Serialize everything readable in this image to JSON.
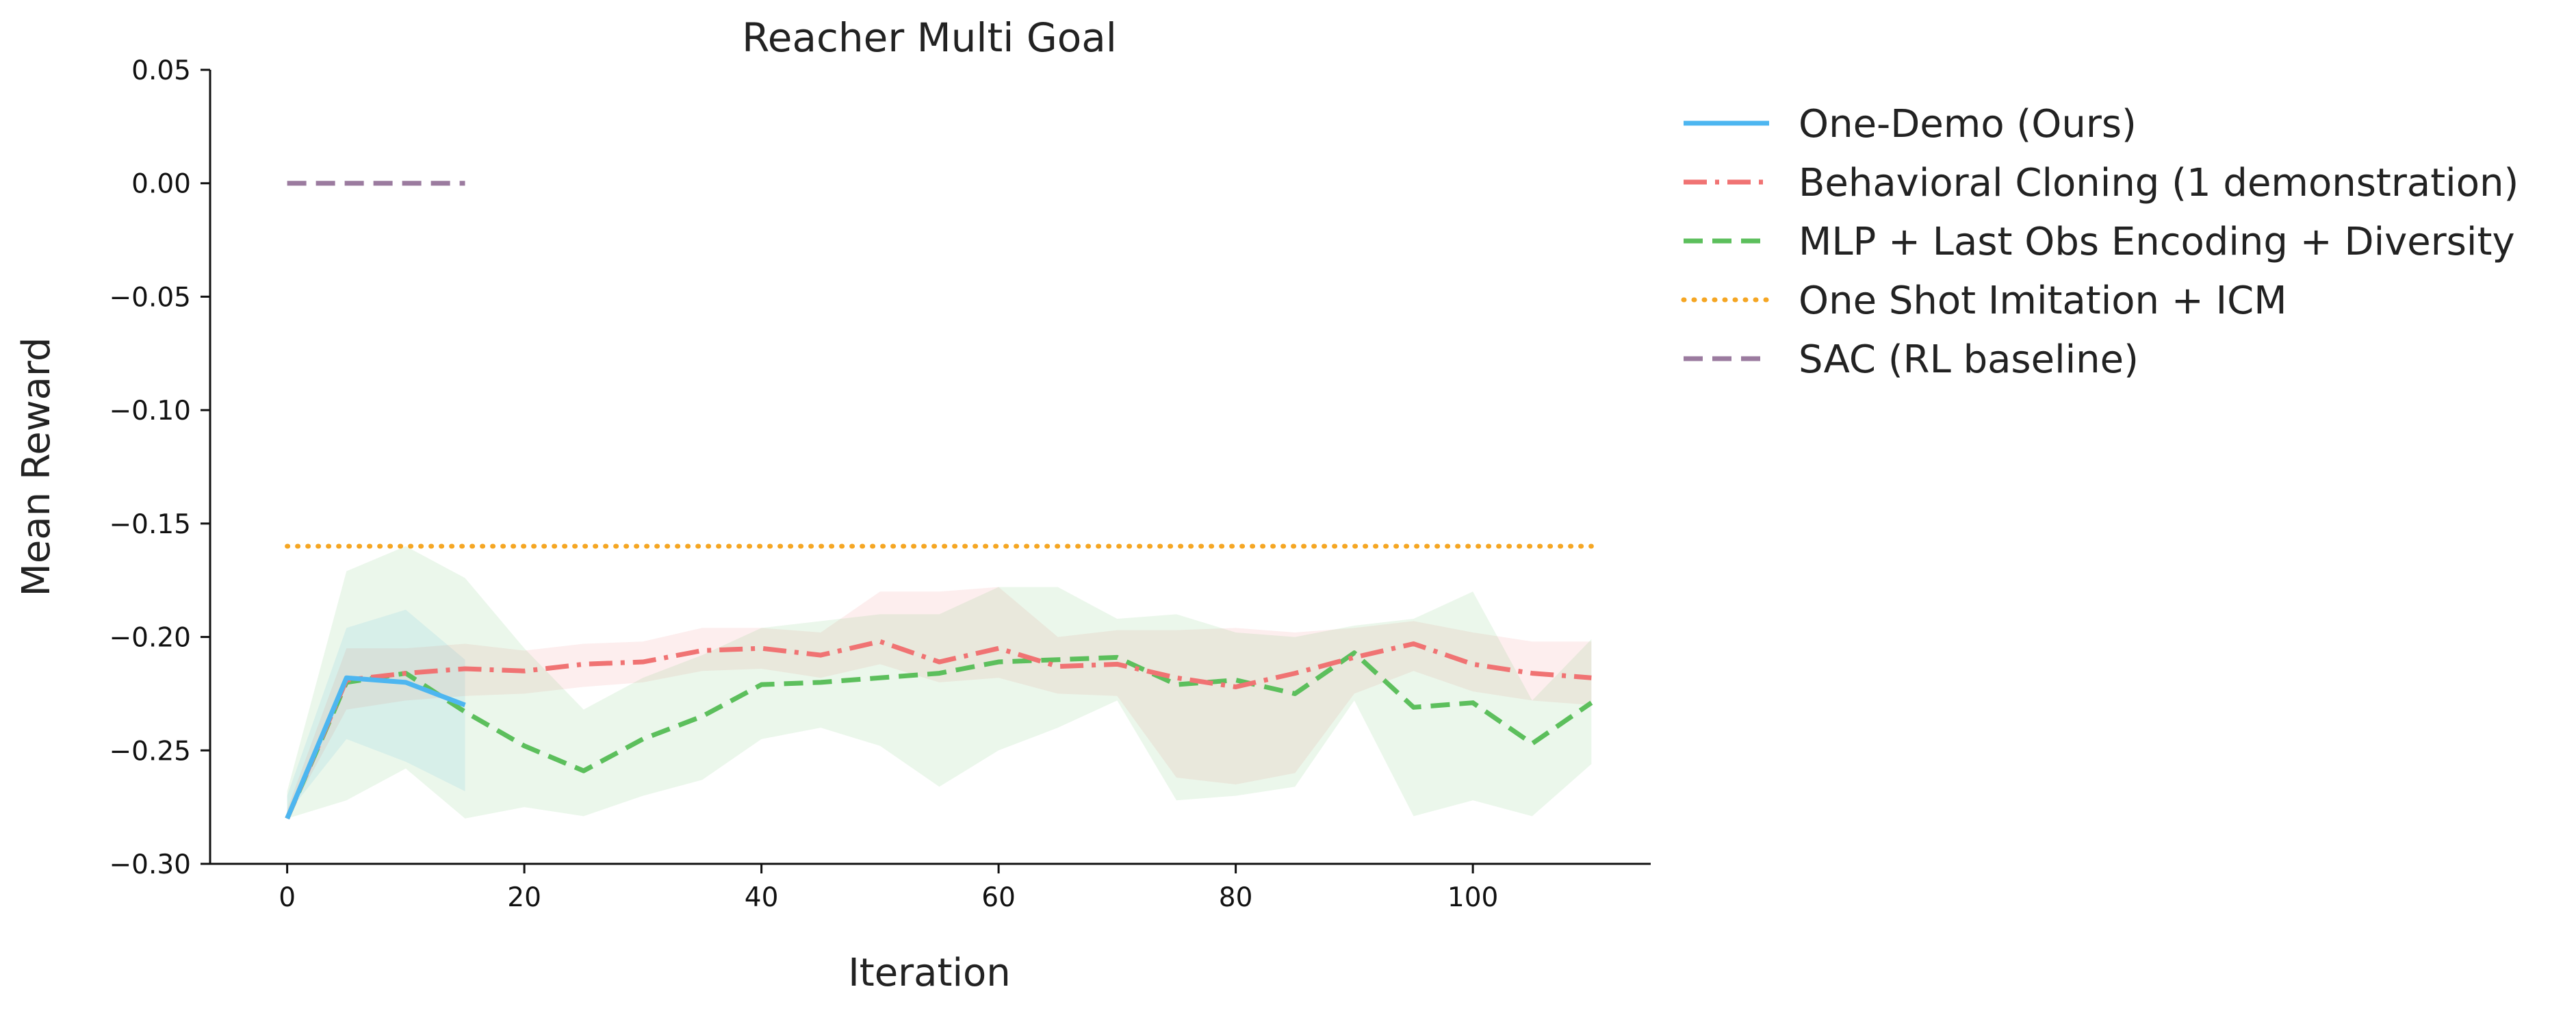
{
  "chart_data": {
    "type": "line",
    "title": "Reacher Multi Goal",
    "xlabel": "Iteration",
    "ylabel": "Mean Reward",
    "xlim": [
      -6.5,
      115
    ],
    "ylim": [
      -0.3,
      0.05
    ],
    "xticks": [
      0,
      20,
      40,
      60,
      80,
      100
    ],
    "xtick_labels": [
      "0",
      "20",
      "40",
      "60",
      "80",
      "100"
    ],
    "yticks": [
      0.05,
      0.0,
      -0.05,
      -0.1,
      -0.15,
      -0.2,
      -0.25,
      -0.3
    ],
    "ytick_labels": [
      "0.05",
      "0.00",
      "−0.05",
      "−0.10",
      "−0.15",
      "−0.20",
      "−0.25",
      "−0.30"
    ],
    "grid": false,
    "legend_position": "outside-top-right",
    "series": [
      {
        "name": "One-Demo (Ours)",
        "color": "#4db6f0",
        "dash": "solid",
        "x": [
          0,
          5,
          10,
          15
        ],
        "y": [
          -0.28,
          -0.218,
          -0.22,
          -0.23
        ],
        "lower": [
          -0.278,
          -0.245,
          -0.255,
          -0.268
        ],
        "upper": [
          -0.27,
          -0.196,
          -0.188,
          -0.21
        ]
      },
      {
        "name": "Behavioral Cloning (1 demonstration)",
        "color": "#f07373",
        "dash": "dashdot",
        "x": [
          0,
          5,
          10,
          15,
          20,
          25,
          30,
          35,
          40,
          45,
          50,
          55,
          60,
          65,
          70,
          75,
          80,
          85,
          90,
          95,
          100,
          105,
          110
        ],
        "y": [
          -0.28,
          -0.219,
          -0.216,
          -0.214,
          -0.215,
          -0.212,
          -0.211,
          -0.206,
          -0.205,
          -0.208,
          -0.202,
          -0.211,
          -0.205,
          -0.213,
          -0.212,
          -0.218,
          -0.222,
          -0.216,
          -0.209,
          -0.203,
          -0.212,
          -0.216,
          -0.218
        ],
        "lower": [
          -0.28,
          -0.232,
          -0.228,
          -0.226,
          -0.225,
          -0.222,
          -0.22,
          -0.215,
          -0.214,
          -0.218,
          -0.212,
          -0.22,
          -0.218,
          -0.225,
          -0.226,
          -0.262,
          -0.265,
          -0.26,
          -0.225,
          -0.215,
          -0.224,
          -0.228,
          -0.23
        ],
        "upper": [
          -0.276,
          -0.205,
          -0.205,
          -0.203,
          -0.206,
          -0.203,
          -0.202,
          -0.196,
          -0.196,
          -0.198,
          -0.18,
          -0.18,
          -0.178,
          -0.2,
          -0.197,
          -0.197,
          -0.196,
          -0.198,
          -0.196,
          -0.193,
          -0.198,
          -0.202,
          -0.202
        ]
      },
      {
        "name": "MLP + Last Obs Encoding + Diversity",
        "color": "#5cbf5c",
        "dash": "dashed",
        "x": [
          0,
          5,
          10,
          15,
          20,
          25,
          30,
          35,
          40,
          45,
          50,
          55,
          60,
          65,
          70,
          75,
          80,
          85,
          90,
          95,
          100,
          105,
          110
        ],
        "y": [
          -0.28,
          -0.22,
          -0.216,
          -0.233,
          -0.248,
          -0.259,
          -0.245,
          -0.235,
          -0.221,
          -0.22,
          -0.218,
          -0.216,
          -0.211,
          -0.21,
          -0.209,
          -0.221,
          -0.219,
          -0.225,
          -0.207,
          -0.231,
          -0.229,
          -0.247,
          -0.229
        ],
        "lower": [
          -0.28,
          -0.272,
          -0.258,
          -0.28,
          -0.275,
          -0.279,
          -0.27,
          -0.263,
          -0.245,
          -0.24,
          -0.248,
          -0.266,
          -0.25,
          -0.24,
          -0.228,
          -0.272,
          -0.27,
          -0.266,
          -0.228,
          -0.279,
          -0.272,
          -0.279,
          -0.256
        ],
        "upper": [
          -0.268,
          -0.171,
          -0.16,
          -0.174,
          -0.205,
          -0.232,
          -0.218,
          -0.208,
          -0.196,
          -0.193,
          -0.19,
          -0.19,
          -0.178,
          -0.178,
          -0.192,
          -0.19,
          -0.198,
          -0.2,
          -0.195,
          -0.192,
          -0.18,
          -0.228,
          -0.201
        ]
      },
      {
        "name": "One Shot Imitation + ICM",
        "color": "#f5a623",
        "dash": "dotted",
        "x": [
          0,
          110
        ],
        "y": [
          -0.16,
          -0.16
        ]
      },
      {
        "name": "SAC (RL baseline)",
        "color": "#9b7b9f",
        "dash": "dashed",
        "x": [
          0,
          15
        ],
        "y": [
          0.0,
          0.0
        ]
      }
    ]
  }
}
